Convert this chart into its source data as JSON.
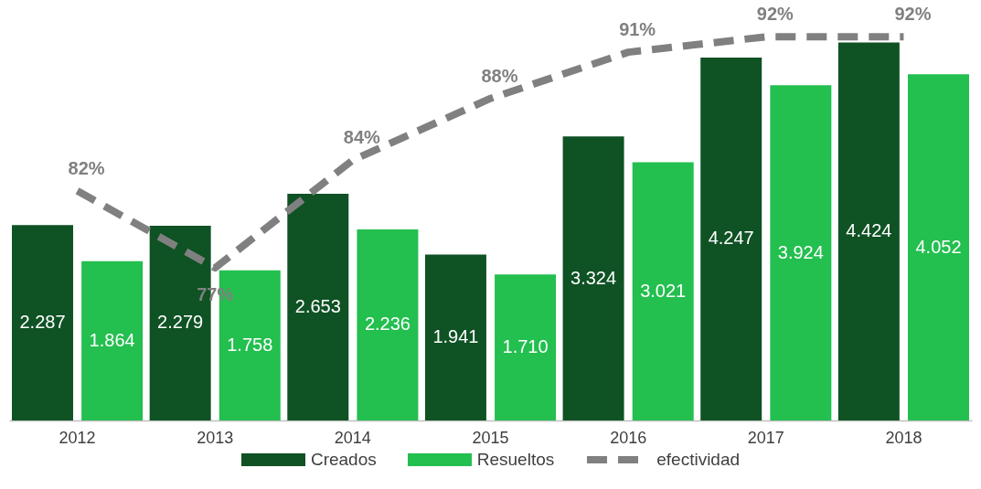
{
  "chart_data": {
    "type": "bar",
    "categories": [
      "2012",
      "2013",
      "2014",
      "2015",
      "2016",
      "2017",
      "2018"
    ],
    "series": [
      {
        "name": "Creados",
        "color": "#0f5224",
        "values": [
          2287,
          2279,
          2653,
          1941,
          3324,
          4247,
          4424
        ],
        "value_labels": [
          "2.287",
          "2.279",
          "2.653",
          "1.941",
          "3.324",
          "4.247",
          "4.424"
        ]
      },
      {
        "name": "Resueltos",
        "color": "#23bf4f",
        "values": [
          1864,
          1758,
          2236,
          1710,
          3021,
          3924,
          4052
        ],
        "value_labels": [
          "1.864",
          "1.758",
          "2.236",
          "1.710",
          "3.021",
          "3.924",
          "4.052"
        ]
      },
      {
        "name": "efectividad",
        "type": "line",
        "axis": "y2",
        "color": "#808080",
        "line_style": "dashed",
        "marker": "none",
        "values": [
          82,
          77,
          84,
          88,
          91,
          92,
          92
        ],
        "value_labels": [
          "82%",
          "77%",
          "84%",
          "88%",
          "91%",
          "92%",
          "92%"
        ]
      }
    ],
    "tick_labels": "x",
    "grid": false,
    "legend": "bottom"
  }
}
